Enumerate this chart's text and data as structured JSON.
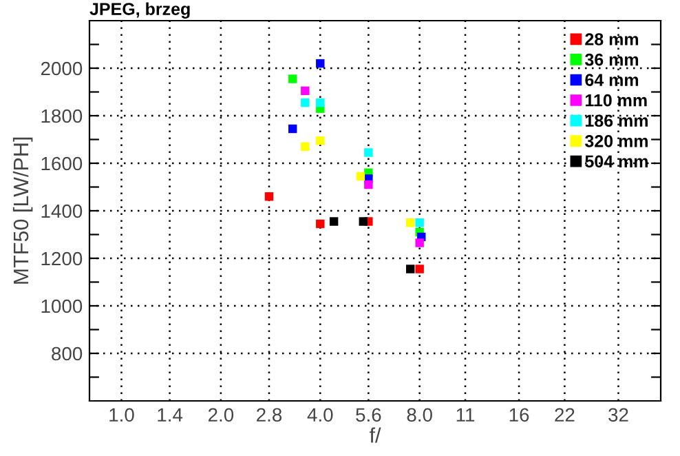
{
  "chart_data": {
    "type": "scatter",
    "title": "JPEG, brzeg",
    "xlabel": "f/",
    "ylabel": "MTF50 [LW/PH]",
    "log": "x",
    "marker": "square",
    "grid": true,
    "legend": "top right",
    "xlim": [
      0.8,
      43
    ],
    "ylim": [
      600,
      2200
    ],
    "xticks": [
      {
        "value": 1,
        "label": "1.0"
      },
      1.4,
      {
        "value": 2,
        "label": "2.0"
      },
      2.8,
      {
        "value": 4,
        "label": "4.0"
      },
      5.6,
      {
        "value": 8,
        "label": "8.0"
      },
      11,
      16,
      22,
      32
    ],
    "yticks": [
      {
        "value": 700,
        "label": null
      },
      800,
      {
        "value": 900,
        "label": null
      },
      1000,
      {
        "value": 1100,
        "label": null
      },
      1200,
      {
        "value": 1300,
        "label": null
      },
      1400,
      {
        "value": 1500,
        "label": null
      },
      1600,
      {
        "value": 1700,
        "label": null
      },
      1800,
      {
        "value": 1900,
        "label": null
      },
      2000,
      {
        "value": 2100,
        "label": null
      }
    ],
    "series": [
      {
        "name": "28 mm",
        "color": "#ff0000",
        "x": [
          2.8,
          4.0,
          5.6,
          8.0
        ],
        "values": [
          1460,
          1345,
          1355,
          1155
        ]
      },
      {
        "name": "36 mm",
        "color": "#00ff00",
        "x": [
          3.3,
          4.0,
          5.6,
          8.0
        ],
        "values": [
          1955,
          1830,
          1560,
          1310
        ]
      },
      {
        "name": "64 mm",
        "color": "#0000ff",
        "x": [
          4.0,
          3.3,
          5.6,
          8.1
        ],
        "values": [
          2020,
          1745,
          1535,
          1290
        ]
      },
      {
        "name": "110 mm",
        "color": "#ff00ff",
        "x": [
          3.6,
          5.6,
          8.0
        ],
        "values": [
          1905,
          1510,
          1265
        ]
      },
      {
        "name": "186 mm",
        "color": "#00ffff",
        "x": [
          3.6,
          4.0,
          5.6,
          8.0
        ],
        "values": [
          1855,
          1855,
          1645,
          1350
        ]
      },
      {
        "name": "320 mm",
        "color": "#ffff00",
        "x": [
          3.6,
          4.0,
          5.3,
          7.5
        ],
        "values": [
          1670,
          1695,
          1545,
          1350
        ]
      },
      {
        "name": "504 mm",
        "color": "#000000",
        "x": [
          4.4,
          5.4,
          7.5
        ],
        "values": [
          1355,
          1355,
          1155
        ]
      }
    ]
  }
}
